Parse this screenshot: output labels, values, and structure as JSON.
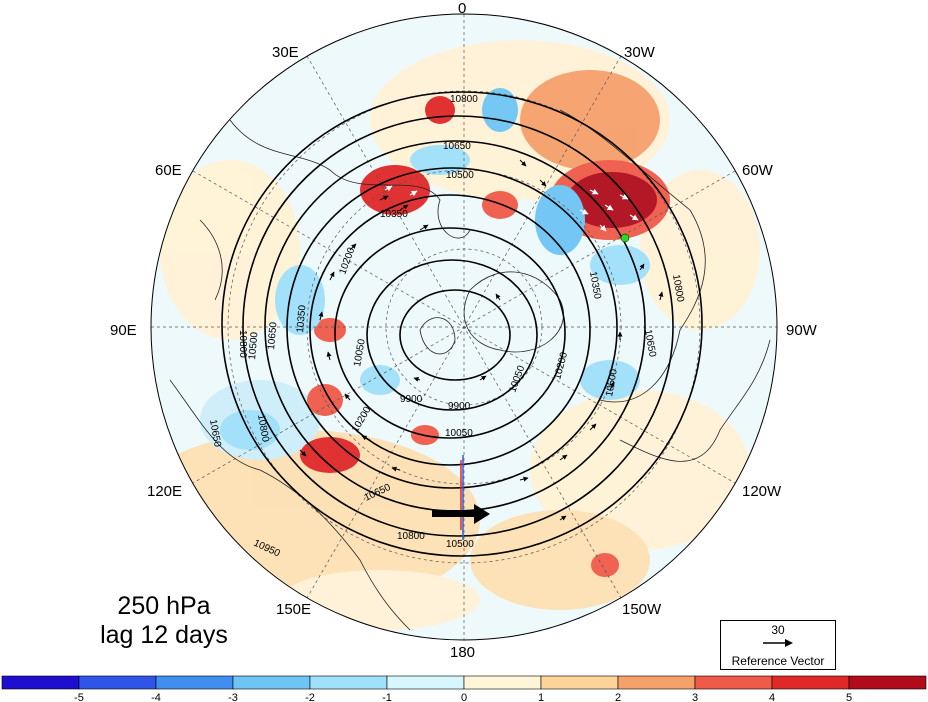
{
  "map": {
    "projection": "north polar stereographic",
    "longitude_labels": {
      "top": "0",
      "top_right": "30W",
      "right_upper": "60W",
      "right": "90W",
      "right_lower": "120W",
      "bottom_right": "150W",
      "bottom": "180",
      "bottom_left": "150E",
      "left_lower": "120E",
      "left": "90E",
      "left_upper": "60E",
      "top_left": "30E"
    },
    "contour_labels": [
      "10800",
      "10650",
      "10500",
      "10350",
      "10200",
      "10050",
      "9900",
      "9900",
      "10050",
      "10200",
      "10350",
      "10500",
      "10650",
      "10800",
      "10950",
      "10800",
      "10650",
      "10500",
      "10350",
      "10200",
      "10050",
      "10650",
      "10800",
      "10500",
      "10650",
      "10800"
    ],
    "marker_color": "#22dd22"
  },
  "caption": {
    "level": "250 hPa",
    "lag": "lag 12 days"
  },
  "reference_vector": {
    "value": "30",
    "label": "Reference Vector"
  },
  "colorbar": {
    "ticks": [
      "-5",
      "-4",
      "-3",
      "-2",
      "-1",
      "0",
      "1",
      "2",
      "3",
      "4",
      "5"
    ],
    "colors": [
      "#1e0fd0",
      "#2f55e8",
      "#3f8ef0",
      "#6ec4f4",
      "#9fe0fb",
      "#d8f6fd",
      "#fff5d8",
      "#fcd49a",
      "#f6a06a",
      "#f05a48",
      "#e02828",
      "#b00c1c"
    ]
  }
}
